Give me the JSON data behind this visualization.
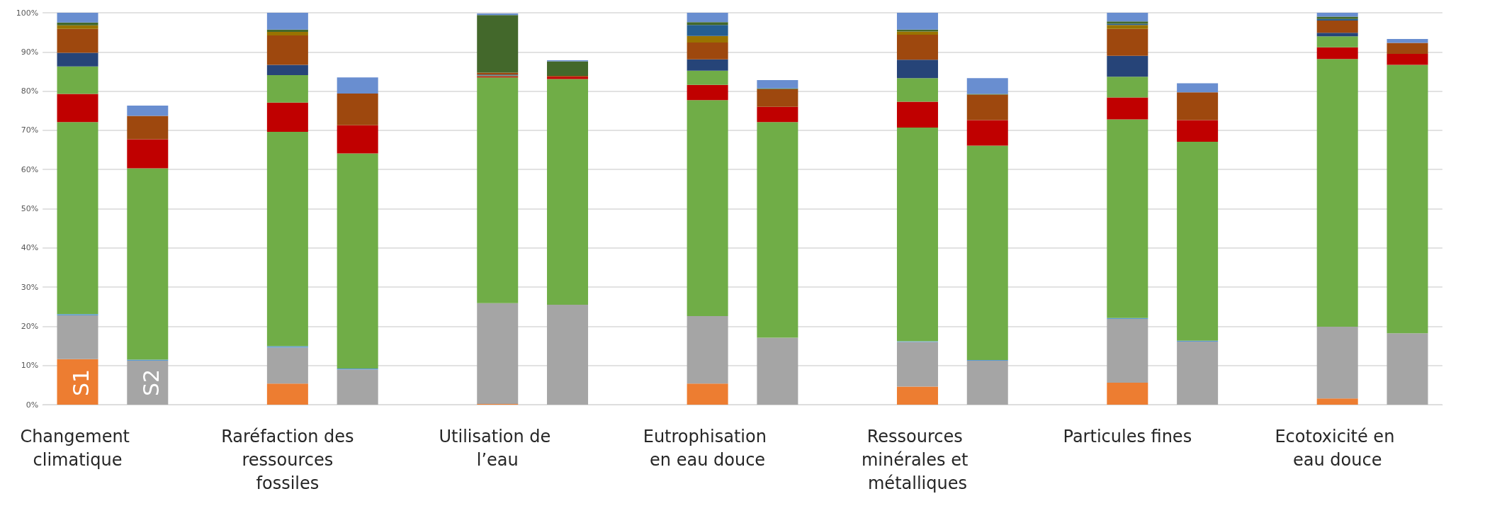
{
  "chart_data": {
    "type": "bar",
    "stacked": true,
    "grid": "y",
    "categories": [
      "Changement climatique",
      null,
      null,
      "Raréfaction des ressources fossiles",
      null,
      null,
      "Utilisation de l’eau",
      null,
      null,
      "Eutrophisation en eau douce",
      null,
      null,
      "Ressources minérales et métalliques",
      null,
      null,
      "Particules fines",
      null,
      null,
      "Ecotoxicité en eau douce",
      null
    ],
    "ylim": [
      0,
      100
    ],
    "yticks": [
      {
        "value": 0,
        "label": "0%"
      },
      {
        "value": 10,
        "label": "10%"
      },
      {
        "value": 20,
        "label": "20%"
      },
      {
        "value": 30,
        "label": "30%"
      },
      {
        "value": 40,
        "label": "40%"
      },
      {
        "value": 50,
        "label": "50%"
      },
      {
        "value": 60,
        "label": "60%"
      },
      {
        "value": 70,
        "label": "70%"
      },
      {
        "value": 80,
        "label": "80%"
      },
      {
        "value": 90,
        "label": "90%"
      },
      {
        "value": 100,
        "label": "100%"
      }
    ],
    "annotations": [
      "S1",
      "S2"
    ],
    "series": [
      {
        "color": "#ed7d31",
        "values": [
          11.6,
          null,
          null,
          5.4,
          null,
          null,
          0.2,
          null,
          null,
          5.4,
          null,
          null,
          4.6,
          null,
          null,
          5.6,
          null,
          null,
          1.6,
          null
        ]
      },
      {
        "color": "#a5a5a5",
        "values": [
          11.2,
          11.2,
          null,
          9.2,
          9.0,
          null,
          25.7,
          25.5,
          null,
          17.2,
          17.1,
          null,
          11.4,
          11.2,
          null,
          16.3,
          16.1,
          null,
          18.3,
          18.2
        ]
      },
      {
        "color": "#5b9bd5",
        "values": [
          0.3,
          0.3,
          null,
          0.3,
          0.2,
          null,
          null,
          null,
          null,
          null,
          null,
          null,
          0.2,
          0.2,
          null,
          0.2,
          0.2,
          null,
          null,
          null
        ]
      },
      {
        "color": "#70ad47",
        "values": [
          49.0,
          48.8,
          null,
          54.7,
          54.9,
          null,
          57.6,
          57.6,
          null,
          55.1,
          55.0,
          null,
          54.5,
          54.7,
          null,
          50.7,
          50.8,
          null,
          68.3,
          68.5
        ]
      },
      {
        "color": "#c00000",
        "values": [
          7.2,
          7.4,
          null,
          7.5,
          7.2,
          null,
          0.3,
          0.6,
          null,
          3.9,
          3.9,
          null,
          6.6,
          6.5,
          null,
          5.6,
          5.5,
          null,
          3.0,
          2.8
        ]
      },
      {
        "color": "#70ad47",
        "values": [
          7.0,
          null,
          null,
          7.0,
          null,
          null,
          0.2,
          null,
          null,
          3.6,
          null,
          null,
          6.0,
          null,
          null,
          5.3,
          null,
          null,
          2.8,
          null
        ]
      },
      {
        "color": "#264478",
        "values": [
          3.5,
          null,
          null,
          2.6,
          null,
          null,
          0.2,
          null,
          null,
          2.9,
          null,
          null,
          4.7,
          null,
          null,
          5.3,
          null,
          null,
          0.9,
          null
        ]
      },
      {
        "color": "#9e480e",
        "values": [
          6.1,
          6.0,
          null,
          7.5,
          8.1,
          null,
          0.5,
          0.2,
          null,
          4.3,
          4.5,
          null,
          6.4,
          6.5,
          null,
          6.9,
          7.1,
          null,
          3.1,
          2.8
        ]
      },
      {
        "color": "#997300",
        "values": [
          0.9,
          null,
          null,
          0.9,
          null,
          null,
          null,
          null,
          null,
          1.7,
          null,
          null,
          0.8,
          null,
          null,
          1.0,
          null,
          null,
          null,
          null
        ]
      },
      {
        "color": "#255e91",
        "values": [
          null,
          null,
          null,
          null,
          null,
          null,
          null,
          null,
          null,
          2.8,
          null,
          null,
          null,
          null,
          null,
          0.3,
          null,
          null,
          0.4,
          null
        ]
      },
      {
        "color": "#43682b",
        "values": [
          0.7,
          null,
          null,
          0.6,
          null,
          null,
          14.7,
          3.7,
          null,
          0.7,
          0.2,
          null,
          0.5,
          0.2,
          null,
          0.6,
          null,
          null,
          0.6,
          null
        ]
      },
      {
        "color": "#698ed0",
        "values": [
          2.5,
          2.6,
          null,
          4.3,
          4.1,
          null,
          0.4,
          0.3,
          null,
          2.4,
          2.1,
          null,
          4.3,
          4.0,
          null,
          2.2,
          2.3,
          null,
          1.0,
          1.0
        ]
      }
    ]
  }
}
